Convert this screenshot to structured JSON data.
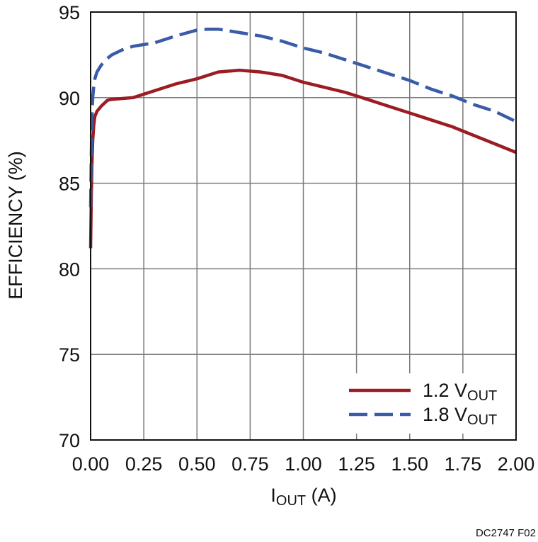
{
  "chart_data": {
    "type": "line",
    "title": "",
    "xlabel": {
      "main": "I",
      "sub": "OUT",
      "unit": " (A)"
    },
    "ylabel": "EFFICIENCY (%)",
    "xlim": [
      0,
      2
    ],
    "ylim": [
      70,
      95
    ],
    "x_ticks": [
      0,
      0.25,
      0.5,
      0.75,
      1.0,
      1.25,
      1.5,
      1.75,
      2.0
    ],
    "x_tick_labels": [
      "0.00",
      "0.25",
      "0.50",
      "0.75",
      "1.00",
      "1.25",
      "1.50",
      "1.75",
      "2.00"
    ],
    "y_ticks": [
      70,
      75,
      80,
      85,
      90,
      95
    ],
    "y_tick_labels": [
      "70",
      "75",
      "80",
      "85",
      "90",
      "95"
    ],
    "grid": true,
    "legend_position": "bottom-right",
    "series": [
      {
        "name": "1.2 VOUT",
        "legend_main": "1.2 V",
        "legend_sub": "OUT",
        "color": "#9b1c23",
        "style": "solid",
        "points": [
          [
            0.0,
            81.2
          ],
          [
            0.003,
            84.0
          ],
          [
            0.006,
            86.0
          ],
          [
            0.01,
            87.5
          ],
          [
            0.015,
            88.4
          ],
          [
            0.02,
            88.9
          ],
          [
            0.03,
            89.2
          ],
          [
            0.05,
            89.5
          ],
          [
            0.08,
            89.85
          ],
          [
            0.1,
            89.9
          ],
          [
            0.15,
            89.95
          ],
          [
            0.2,
            90.0
          ],
          [
            0.3,
            90.4
          ],
          [
            0.4,
            90.8
          ],
          [
            0.5,
            91.1
          ],
          [
            0.6,
            91.5
          ],
          [
            0.7,
            91.6
          ],
          [
            0.8,
            91.5
          ],
          [
            0.9,
            91.3
          ],
          [
            1.0,
            90.9
          ],
          [
            1.1,
            90.6
          ],
          [
            1.2,
            90.3
          ],
          [
            1.3,
            89.9
          ],
          [
            1.4,
            89.5
          ],
          [
            1.5,
            89.1
          ],
          [
            1.6,
            88.7
          ],
          [
            1.7,
            88.3
          ],
          [
            1.8,
            87.8
          ],
          [
            1.9,
            87.3
          ],
          [
            2.0,
            86.8
          ]
        ]
      },
      {
        "name": "1.8 VOUT",
        "legend_main": "1.8 V",
        "legend_sub": "OUT",
        "color": "#3a5ca8",
        "style": "dashed",
        "points": [
          [
            0.0,
            83.6
          ],
          [
            0.003,
            86.5
          ],
          [
            0.006,
            88.8
          ],
          [
            0.01,
            90.0
          ],
          [
            0.015,
            90.7
          ],
          [
            0.02,
            91.1
          ],
          [
            0.03,
            91.5
          ],
          [
            0.05,
            91.9
          ],
          [
            0.08,
            92.3
          ],
          [
            0.1,
            92.5
          ],
          [
            0.15,
            92.8
          ],
          [
            0.2,
            93.0
          ],
          [
            0.3,
            93.2
          ],
          [
            0.4,
            93.6
          ],
          [
            0.5,
            93.95
          ],
          [
            0.55,
            94.0
          ],
          [
            0.6,
            94.0
          ],
          [
            0.7,
            93.8
          ],
          [
            0.8,
            93.6
          ],
          [
            0.9,
            93.3
          ],
          [
            1.0,
            92.9
          ],
          [
            1.1,
            92.6
          ],
          [
            1.2,
            92.2
          ],
          [
            1.3,
            91.8
          ],
          [
            1.4,
            91.4
          ],
          [
            1.5,
            91.0
          ],
          [
            1.6,
            90.5
          ],
          [
            1.7,
            90.1
          ],
          [
            1.8,
            89.6
          ],
          [
            1.9,
            89.2
          ],
          [
            2.0,
            88.6
          ]
        ]
      }
    ]
  },
  "footer": "DC2747 F02"
}
